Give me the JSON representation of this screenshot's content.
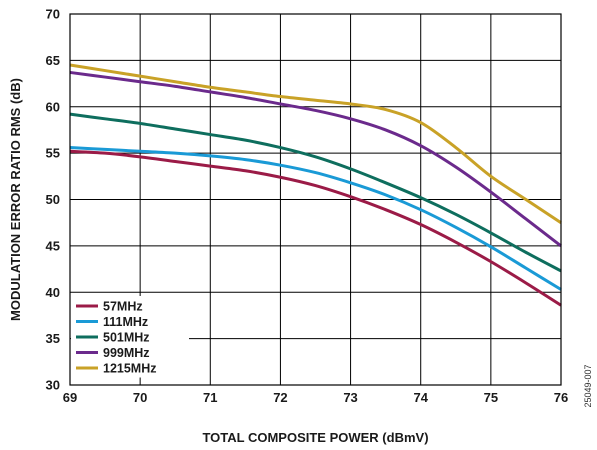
{
  "chart_data": {
    "type": "line",
    "xlabel": "TOTAL COMPOSITE POWER (dBmV)",
    "ylabel": "MODULATION ERROR RATIO RMS (dB)",
    "xlim": [
      69,
      76
    ],
    "ylim": [
      30,
      70
    ],
    "xticks": [
      "69",
      "70",
      "71",
      "72",
      "73",
      "74",
      "75",
      "76"
    ],
    "yticks": [
      "30",
      "35",
      "40",
      "45",
      "50",
      "55",
      "60",
      "65",
      "70"
    ],
    "grid": true,
    "legend_position": "bottom-left",
    "series": [
      {
        "name": "57MHz",
        "color": "#9b1b47",
        "x": [
          69,
          69.5,
          70,
          70.5,
          71,
          71.5,
          72,
          72.5,
          73,
          73.5,
          74,
          74.5,
          75,
          75.5,
          76
        ],
        "y": [
          55.2,
          55.0,
          54.6,
          54.1,
          53.6,
          53.1,
          52.4,
          51.5,
          50.3,
          48.9,
          47.3,
          45.4,
          43.3,
          41.0,
          38.6
        ]
      },
      {
        "name": "111MHz",
        "color": "#1a9ad6",
        "x": [
          69,
          69.5,
          70,
          70.5,
          71,
          71.5,
          72,
          72.5,
          73,
          73.5,
          74,
          74.5,
          75,
          75.5,
          76
        ],
        "y": [
          55.6,
          55.4,
          55.2,
          55.0,
          54.7,
          54.3,
          53.7,
          52.9,
          51.8,
          50.5,
          48.9,
          47.0,
          44.9,
          42.6,
          40.3
        ]
      },
      {
        "name": "501MHz",
        "color": "#0e6e5e",
        "x": [
          69,
          69.5,
          70,
          70.5,
          71,
          71.5,
          72,
          72.5,
          73,
          73.5,
          74,
          74.5,
          75,
          75.5,
          76
        ],
        "y": [
          59.2,
          58.7,
          58.2,
          57.6,
          57.0,
          56.4,
          55.6,
          54.6,
          53.3,
          51.8,
          50.2,
          48.4,
          46.4,
          44.3,
          42.3
        ]
      },
      {
        "name": "999MHz",
        "color": "#6b2a8c",
        "x": [
          69,
          69.5,
          70,
          70.5,
          71,
          71.5,
          72,
          72.5,
          73,
          73.5,
          74,
          74.5,
          75,
          75.5,
          76
        ],
        "y": [
          63.7,
          63.2,
          62.7,
          62.2,
          61.6,
          61.0,
          60.3,
          59.6,
          58.7,
          57.5,
          55.8,
          53.5,
          50.8,
          47.9,
          45.0
        ]
      },
      {
        "name": "1215MHz",
        "color": "#c9a227",
        "x": [
          69,
          69.5,
          70,
          70.5,
          71,
          71.5,
          72,
          72.5,
          73,
          73.5,
          74,
          74.5,
          75,
          75.5,
          76
        ],
        "y": [
          64.5,
          63.9,
          63.3,
          62.7,
          62.1,
          61.6,
          61.1,
          60.7,
          60.3,
          59.7,
          58.3,
          55.6,
          52.5,
          50.0,
          47.5
        ]
      }
    ]
  },
  "figure_id": "25049-007"
}
